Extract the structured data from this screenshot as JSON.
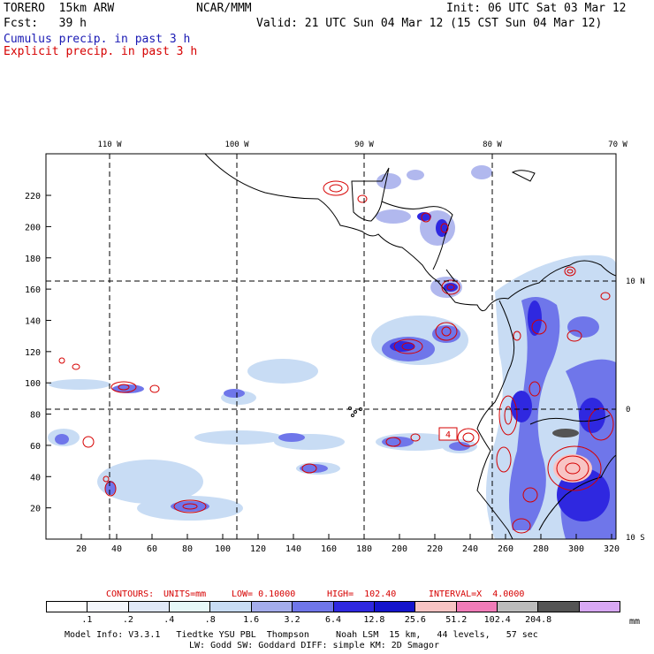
{
  "header": {
    "model": "TORERO  15km ARW",
    "org": "NCAR/MMM",
    "init": "Init: 06 UTC Sat 03 Mar 12",
    "fcst": "Fcst:   39 h",
    "valid": "Valid: 21 UTC Sun 04 Mar 12 (15 CST Sun 04 Mar 12)",
    "field_cumulus": "Cumulus precip. in past 3 h",
    "field_explicit": "Explicit precip. in past 3 h"
  },
  "axes": {
    "lon_labels": [
      "110 W",
      "100 W",
      "90 W",
      "80 W",
      "70 W"
    ],
    "lat_labels": [
      "10 N",
      "0",
      "10 S"
    ],
    "x_ticks": [
      "20",
      "40",
      "60",
      "80",
      "100",
      "120",
      "140",
      "160",
      "180",
      "200",
      "220",
      "240",
      "260",
      "280",
      "300",
      "320"
    ],
    "y_ticks": [
      "220",
      "200",
      "180",
      "160",
      "140",
      "120",
      "100",
      "80",
      "60",
      "40",
      "20"
    ]
  },
  "map_annotations": {
    "box_label": "4"
  },
  "contour_info": {
    "contours": "CONTOURS:",
    "units": "UNITS=mm",
    "low": "LOW= 0.10000",
    "high": "HIGH=  102.40",
    "interval": "INTERVAL=X  4.0000"
  },
  "legend": {
    "levels": [
      ".1",
      ".2",
      ".4",
      ".8",
      "1.6",
      "3.2",
      "6.4",
      "12.8",
      "25.6",
      "51.2",
      "102.4",
      "204.8"
    ],
    "unit": "mm",
    "colors": [
      "#ffffff",
      "#f3f6fc",
      "#e0e8f7",
      "#e6f8f8",
      "#c8dcf4",
      "#a4acec",
      "#6f76ea",
      "#2f28e0",
      "#1414cc",
      "#f8c4c4",
      "#f07cb8",
      "#bcbcbc",
      "#545454",
      "#d8a8f4"
    ]
  },
  "footer": {
    "line1": "Model Info: V3.3.1   Tiedtke YSU PBL  Thompson     Noah LSM  15 km,   44 levels,   57 sec",
    "line2": "LW: Godd SW: Goddard DIFF: simple KM: 2D Smagor"
  },
  "colors": {
    "cumulus": "#1a1ab4",
    "explicit": "#d60000",
    "frame": "#000000"
  }
}
